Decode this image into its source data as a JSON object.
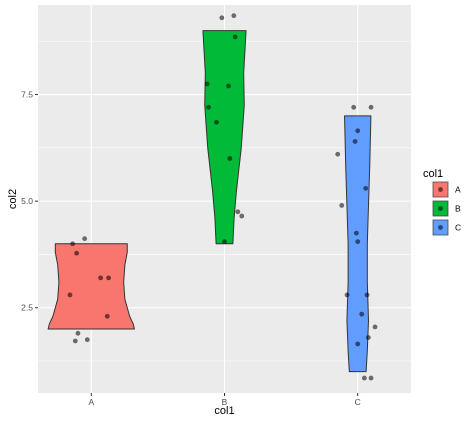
{
  "chart_data": {
    "type": "violin",
    "xlabel": "col1",
    "ylabel": "col2",
    "categories": [
      "A",
      "B",
      "C"
    ],
    "ylim": [
      0.5,
      9.6
    ],
    "y_ticks": [
      2.5,
      5.0,
      7.5
    ],
    "y_tick_labels": [
      "2.5",
      "5.0",
      "7.5"
    ],
    "grid": true,
    "legend": {
      "title": "col1",
      "position": "right",
      "entries": [
        {
          "label": "A",
          "color": "#F8766D"
        },
        {
          "label": "B",
          "color": "#00BA38"
        },
        {
          "label": "C",
          "color": "#619CFF"
        }
      ]
    },
    "series": [
      {
        "name": "A",
        "color": "#F8766D",
        "violin_min": 2.0,
        "violin_max": 4.0,
        "points": [
          {
            "x": -0.05,
            "y": 4.12
          },
          {
            "x": -0.14,
            "y": 4.0
          },
          {
            "x": -0.11,
            "y": 3.78
          },
          {
            "x": 0.07,
            "y": 3.2
          },
          {
            "x": 0.13,
            "y": 3.2
          },
          {
            "x": -0.16,
            "y": 2.8
          },
          {
            "x": 0.12,
            "y": 2.3
          },
          {
            "x": -0.1,
            "y": 1.9
          },
          {
            "x": -0.03,
            "y": 1.75
          },
          {
            "x": -0.12,
            "y": 1.72
          }
        ]
      },
      {
        "name": "B",
        "color": "#00BA38",
        "violin_min": 4.0,
        "violin_max": 9.0,
        "points": [
          {
            "x": -0.02,
            "y": 9.3
          },
          {
            "x": 0.07,
            "y": 9.35
          },
          {
            "x": 0.08,
            "y": 8.85
          },
          {
            "x": -0.13,
            "y": 7.75
          },
          {
            "x": 0.03,
            "y": 7.7
          },
          {
            "x": -0.12,
            "y": 7.2
          },
          {
            "x": -0.06,
            "y": 6.85
          },
          {
            "x": 0.04,
            "y": 6.0
          },
          {
            "x": 0.1,
            "y": 4.75
          },
          {
            "x": 0.13,
            "y": 4.65
          },
          {
            "x": 0.0,
            "y": 4.05
          }
        ]
      },
      {
        "name": "C",
        "color": "#619CFF",
        "violin_min": 1.0,
        "violin_max": 7.0,
        "points": [
          {
            "x": -0.03,
            "y": 7.2
          },
          {
            "x": 0.1,
            "y": 7.2
          },
          {
            "x": 0.0,
            "y": 6.65
          },
          {
            "x": -0.02,
            "y": 6.4
          },
          {
            "x": -0.15,
            "y": 6.1
          },
          {
            "x": 0.06,
            "y": 5.3
          },
          {
            "x": -0.12,
            "y": 4.9
          },
          {
            "x": -0.01,
            "y": 4.25
          },
          {
            "x": 0.0,
            "y": 4.05
          },
          {
            "x": -0.08,
            "y": 2.8
          },
          {
            "x": 0.07,
            "y": 2.8
          },
          {
            "x": 0.03,
            "y": 2.35
          },
          {
            "x": 0.13,
            "y": 2.05
          },
          {
            "x": 0.08,
            "y": 1.8
          },
          {
            "x": 0.0,
            "y": 1.65
          },
          {
            "x": 0.05,
            "y": 0.85
          },
          {
            "x": 0.1,
            "y": 0.85
          }
        ]
      }
    ]
  }
}
